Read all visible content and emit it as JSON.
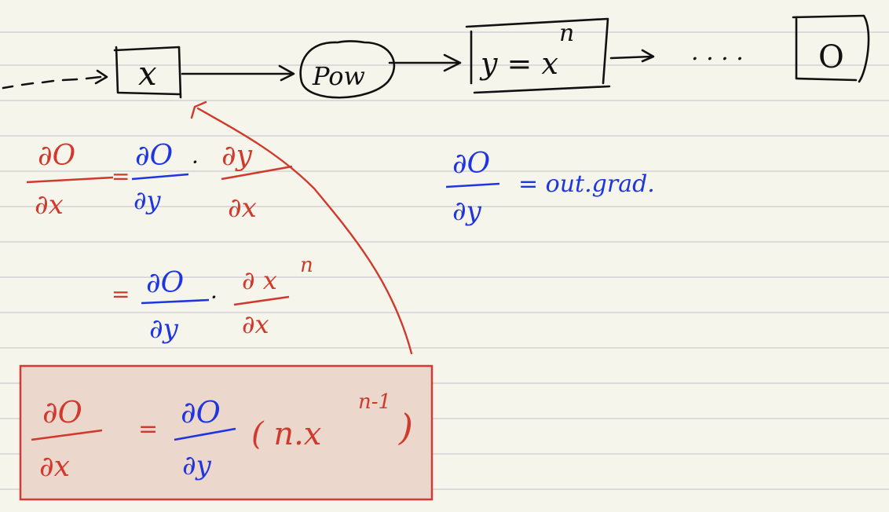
{
  "colors": {
    "paper": "#f6f5ec",
    "rule_line": "#c9cccf",
    "black_ink": "#111111",
    "red_ink": "#cf3a2c",
    "blue_ink": "#1f35e0",
    "box_fill": "#ecd7cc",
    "box_border": "#d33a35"
  },
  "graph": {
    "input_node": "x",
    "op_node": "Pow",
    "output_node": "y = x",
    "output_exponent": "n",
    "ellipsis": ". . . .",
    "final_node": "O"
  },
  "chain_rule": {
    "dO": "∂O",
    "dx": "∂x",
    "dy": "∂y",
    "eq": "=",
    "dot": "·",
    "dxn": "∂ x",
    "n_exp": "n"
  },
  "note": {
    "dO": "∂O",
    "dy": "∂y",
    "text": "= out.grad."
  },
  "result": {
    "dO": "∂O",
    "dx": "∂x",
    "eq": "=",
    "dy": "∂y",
    "paren": "( n.x",
    "exp": "n-1",
    "close": ")"
  }
}
